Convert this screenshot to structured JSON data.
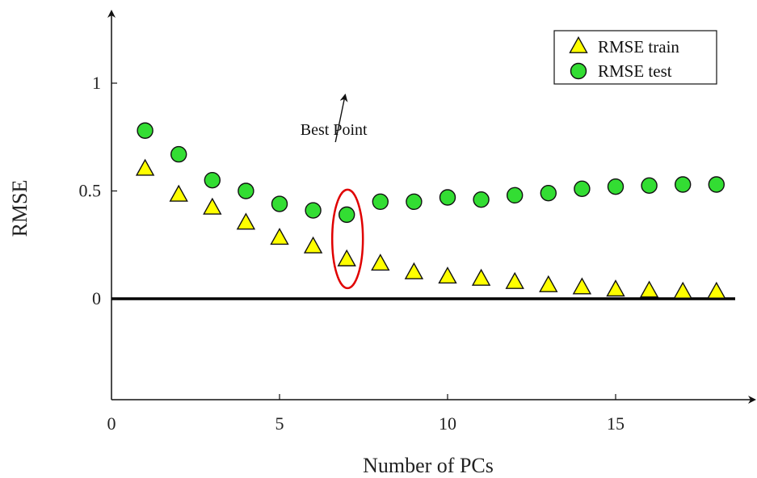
{
  "chart_data": {
    "type": "scatter",
    "xlabel": "Number of PCs",
    "ylabel": "RMSE",
    "xlim": [
      0,
      18.5
    ],
    "ylim": [
      -0.47,
      1.3
    ],
    "xticks": [
      0,
      5,
      10,
      15
    ],
    "yticks": [
      0,
      0.5,
      1
    ],
    "xtick_labels": [
      "0",
      "5",
      "10",
      "15"
    ],
    "ytick_labels": [
      "0",
      "0.5",
      "1"
    ],
    "grid": false,
    "legend_position": "top-right",
    "zero_line": 0,
    "series": [
      {
        "name": "RMSE train",
        "marker": "triangle",
        "color": "#ffff00",
        "x": [
          1,
          2,
          3,
          4,
          5,
          6,
          7,
          8,
          9,
          10,
          11,
          12,
          13,
          14,
          15,
          16,
          17,
          18
        ],
        "y": [
          0.6,
          0.48,
          0.42,
          0.35,
          0.28,
          0.24,
          0.18,
          0.16,
          0.12,
          0.1,
          0.09,
          0.075,
          0.06,
          0.05,
          0.04,
          0.035,
          0.03,
          0.03
        ]
      },
      {
        "name": "RMSE test",
        "marker": "circle",
        "color": "#33dd33",
        "x": [
          1,
          2,
          3,
          4,
          5,
          6,
          7,
          8,
          9,
          10,
          11,
          12,
          13,
          14,
          15,
          16,
          17,
          18
        ],
        "y": [
          0.78,
          0.67,
          0.55,
          0.5,
          0.44,
          0.41,
          0.39,
          0.45,
          0.45,
          0.47,
          0.46,
          0.48,
          0.49,
          0.51,
          0.52,
          0.525,
          0.53,
          0.53
        ]
      }
    ],
    "annotations": [
      {
        "text": "Best Point",
        "x": 7,
        "y": 0.39
      }
    ]
  }
}
